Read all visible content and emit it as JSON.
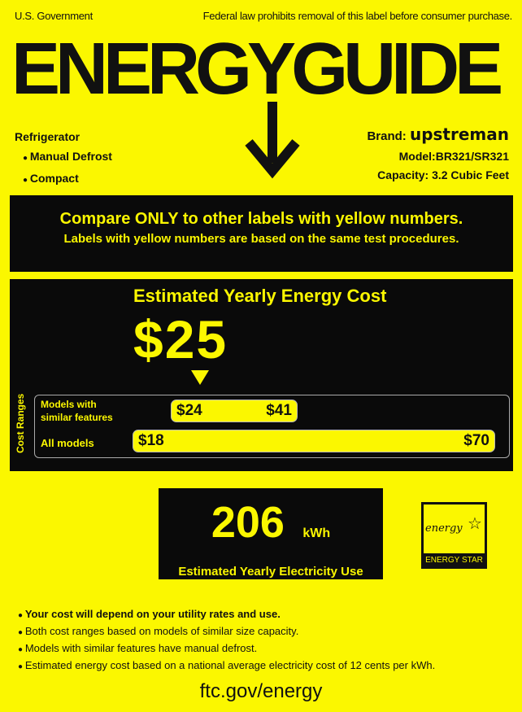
{
  "header": {
    "left": "U.S. Government",
    "right": "Federal law prohibits removal of this label before consumer purchase.",
    "title": "ENERGYGUIDE"
  },
  "product": {
    "type": "Refrigerator",
    "features": [
      "Manual Defrost",
      "Compact"
    ],
    "brand_label": "Brand:",
    "brand": "upstreman",
    "model": "Model:BR321/SR321",
    "capacity": "Capacity: 3.2 Cubic Feet"
  },
  "compare": {
    "line1": "Compare ONLY to other labels with yellow numbers.",
    "line2": "Labels with yellow numbers are based on the same test procedures."
  },
  "cost": {
    "title": "Estimated Yearly Energy Cost",
    "value": "$25",
    "ranges_label": "Cost Ranges",
    "similar_label": "Models with similar features",
    "similar_min": "$24",
    "similar_max": "$41",
    "all_label": "All models",
    "all_min": "$18",
    "all_max": "$70"
  },
  "electricity": {
    "value": "206",
    "unit": "kWh",
    "label": "Estimated Yearly Electricity Use"
  },
  "energy_star": {
    "label": "ENERGY STAR",
    "script": "energy"
  },
  "notes": [
    "Your cost will depend on your utility rates and use.",
    "Both cost ranges based on models of similar size capacity.",
    "Models with similar features have manual defrost.",
    "Estimated energy cost based on a national average electricity cost of 12 cents per kWh."
  ],
  "footer": "ftc.gov/energy",
  "colors": {
    "background": "#fbf700",
    "box": "#0a0a0a"
  }
}
